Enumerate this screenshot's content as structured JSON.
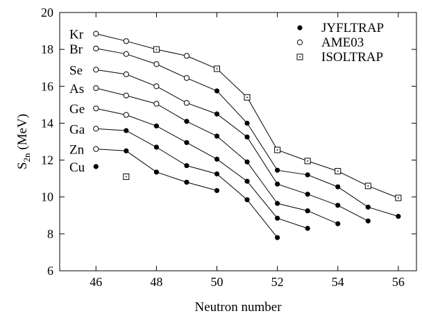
{
  "chart_data": {
    "type": "scatter",
    "title": "",
    "xlabel": "Neutron number",
    "ylabel": {
      "base": "S",
      "sub": "2n",
      "rest": " (MeV)"
    },
    "xlim": [
      44.8,
      56.6
    ],
    "ylim": [
      6,
      20
    ],
    "xticks": [
      46,
      48,
      50,
      52,
      54,
      56
    ],
    "yticks": [
      6,
      8,
      10,
      12,
      14,
      16,
      18,
      20
    ],
    "grid": false,
    "legend_position": "top-right",
    "marker_styles": [
      {
        "name": "JYFLTRAP",
        "marker": "filled-circle"
      },
      {
        "name": "AME03",
        "marker": "open-circle"
      },
      {
        "name": "ISOLTRAP",
        "marker": "dotted-square"
      }
    ],
    "series": [
      {
        "element": "Kr",
        "label_at_y": 18.85,
        "points": [
          [
            46,
            18.85,
            "AME03"
          ],
          [
            47,
            18.45,
            "AME03"
          ],
          [
            48,
            18.0,
            "ISOLTRAP"
          ],
          [
            49,
            17.65,
            "AME03"
          ],
          [
            50,
            16.95,
            "ISOLTRAP"
          ],
          [
            51,
            15.4,
            "ISOLTRAP"
          ],
          [
            52,
            12.55,
            "ISOLTRAP"
          ],
          [
            53,
            11.95,
            "ISOLTRAP"
          ],
          [
            54,
            11.4,
            "ISOLTRAP"
          ],
          [
            55,
            10.6,
            "ISOLTRAP"
          ],
          [
            56,
            9.95,
            "ISOLTRAP"
          ]
        ]
      },
      {
        "element": "Br",
        "label_at_y": 18.05,
        "points": [
          [
            46,
            18.05,
            "AME03"
          ],
          [
            47,
            17.75,
            "AME03"
          ],
          [
            48,
            17.2,
            "AME03"
          ],
          [
            49,
            16.45,
            "AME03"
          ],
          [
            50,
            15.75,
            "JYFLTRAP"
          ],
          [
            51,
            14.0,
            "JYFLTRAP"
          ],
          [
            52,
            11.45,
            "JYFLTRAP"
          ],
          [
            53,
            11.2,
            "JYFLTRAP"
          ],
          [
            54,
            10.55,
            "JYFLTRAP"
          ],
          [
            55,
            9.45,
            "JYFLTRAP"
          ],
          [
            56,
            8.95,
            "JYFLTRAP"
          ]
        ]
      },
      {
        "element": "Se",
        "label_at_y": 16.9,
        "points": [
          [
            46,
            16.9,
            "AME03"
          ],
          [
            47,
            16.65,
            "AME03"
          ],
          [
            48,
            16.0,
            "AME03"
          ],
          [
            49,
            15.1,
            "AME03"
          ],
          [
            50,
            14.5,
            "JYFLTRAP"
          ],
          [
            51,
            13.25,
            "JYFLTRAP"
          ],
          [
            52,
            10.7,
            "JYFLTRAP"
          ],
          [
            53,
            10.15,
            "JYFLTRAP"
          ],
          [
            54,
            9.55,
            "JYFLTRAP"
          ],
          [
            55,
            8.7,
            "JYFLTRAP"
          ]
        ]
      },
      {
        "element": "As",
        "label_at_y": 15.9,
        "points": [
          [
            46,
            15.9,
            "AME03"
          ],
          [
            47,
            15.5,
            "AME03"
          ],
          [
            48,
            15.05,
            "AME03"
          ],
          [
            49,
            14.1,
            "JYFLTRAP"
          ],
          [
            50,
            13.3,
            "JYFLTRAP"
          ],
          [
            51,
            11.9,
            "JYFLTRAP"
          ],
          [
            52,
            9.65,
            "JYFLTRAP"
          ],
          [
            53,
            9.25,
            "JYFLTRAP"
          ],
          [
            54,
            8.55,
            "JYFLTRAP"
          ]
        ]
      },
      {
        "element": "Ge",
        "label_at_y": 14.8,
        "points": [
          [
            46,
            14.8,
            "AME03"
          ],
          [
            47,
            14.45,
            "AME03"
          ],
          [
            48,
            13.85,
            "JYFLTRAP"
          ],
          [
            49,
            12.95,
            "JYFLTRAP"
          ],
          [
            50,
            12.05,
            "JYFLTRAP"
          ],
          [
            51,
            10.85,
            "JYFLTRAP"
          ],
          [
            52,
            8.85,
            "JYFLTRAP"
          ],
          [
            53,
            8.3,
            "JYFLTRAP"
          ]
        ]
      },
      {
        "element": "Ga",
        "label_at_y": 13.7,
        "points": [
          [
            46,
            13.7,
            "AME03"
          ],
          [
            47,
            13.6,
            "JYFLTRAP"
          ],
          [
            48,
            12.7,
            "JYFLTRAP"
          ],
          [
            49,
            11.7,
            "JYFLTRAP"
          ],
          [
            50,
            11.25,
            "JYFLTRAP"
          ],
          [
            51,
            9.85,
            "JYFLTRAP"
          ],
          [
            52,
            7.8,
            "JYFLTRAP"
          ]
        ]
      },
      {
        "element": "Zn",
        "label_at_y": 12.6,
        "points": [
          [
            46,
            12.6,
            "AME03"
          ],
          [
            47,
            12.5,
            "JYFLTRAP"
          ],
          [
            48,
            11.35,
            "JYFLTRAP"
          ],
          [
            49,
            10.8,
            "JYFLTRAP"
          ],
          [
            50,
            10.35,
            "JYFLTRAP"
          ]
        ]
      },
      {
        "element": "Cu",
        "label_at_y": 11.65,
        "points": [
          [
            46,
            11.65,
            "JYFLTRAP"
          ],
          [
            47,
            11.1,
            "ISOLTRAP"
          ]
        ],
        "connected": false
      }
    ]
  }
}
